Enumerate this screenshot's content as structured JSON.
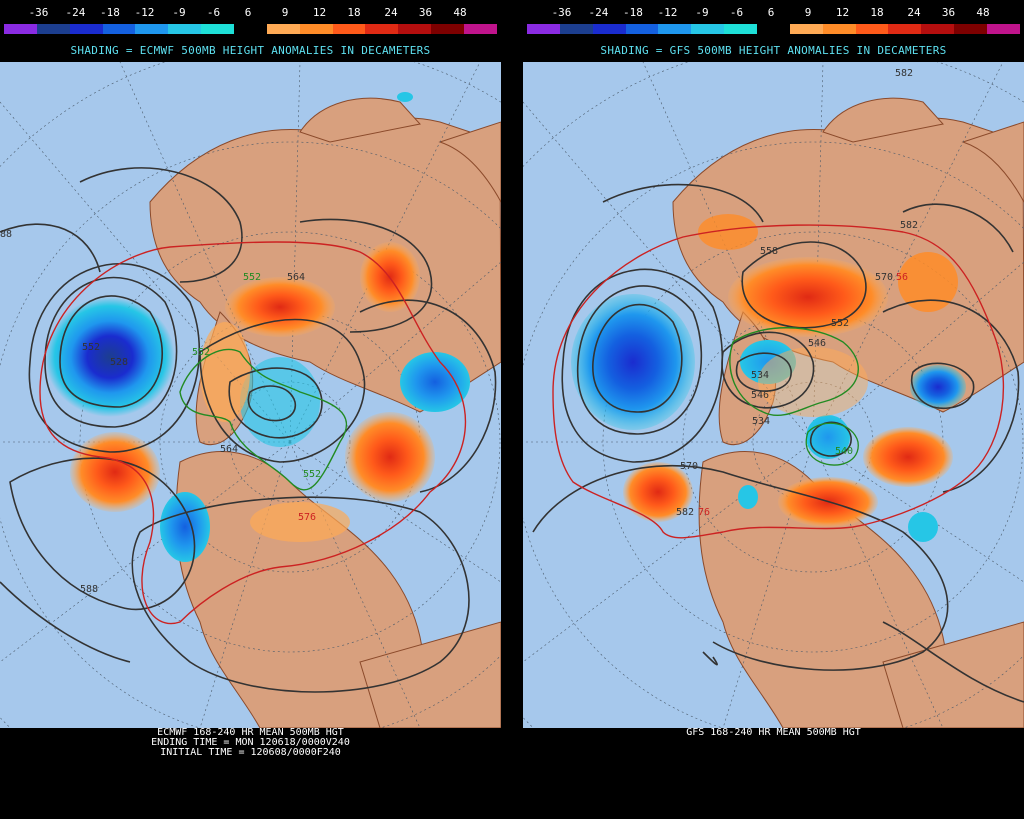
{
  "scale": {
    "labels": [
      "-36",
      "-24",
      "-18",
      "-12",
      "-9",
      "-6",
      "6",
      "9",
      "12",
      "18",
      "24",
      "36",
      "48"
    ],
    "colors": [
      "#8a2be2",
      "#1c3e8f",
      "#1a2ccf",
      "#1460e0",
      "#1f97ee",
      "#26c6e6",
      "#1ee0d8",
      "#000000",
      "#ffaa55",
      "#ff8c28",
      "#ff5a1a",
      "#e02a14",
      "#b40e0e",
      "#7d0000",
      "#c0148c"
    ]
  },
  "left": {
    "shading_title": "SHADING = ECMWF 500MB HEIGHT ANOMALIES IN DECAMETERS",
    "caption": [
      "ECMWF 168-240 HR MEAN 500MB HGT",
      "ENDING TIME = MON 120618/0000V240",
      "INITIAL TIME = 120608/0000F240"
    ],
    "contour_labels": [
      {
        "text": "552",
        "color": "#228b22"
      },
      {
        "text": "564",
        "color": "#333333"
      },
      {
        "text": "552",
        "color": "#333333"
      },
      {
        "text": "528",
        "color": "#333333"
      },
      {
        "text": "552",
        "color": "#228b22"
      },
      {
        "text": "564",
        "color": "#333333"
      },
      {
        "text": "552",
        "color": "#228b22"
      },
      {
        "text": "576",
        "color": "#cc2222"
      },
      {
        "text": "588",
        "color": "#333333"
      },
      {
        "text": "88",
        "color": "#333333"
      }
    ]
  },
  "right": {
    "shading_title": "SHADING = GFS 500MB HEIGHT ANOMALIES IN DECAMETERS",
    "caption": [
      "GFS 168-240 HR MEAN 500MB HGT"
    ],
    "contour_labels": [
      {
        "text": "582",
        "color": "#333333"
      },
      {
        "text": "558",
        "color": "#333333"
      },
      {
        "text": "570",
        "color": "#333333"
      },
      {
        "text": "582",
        "color": "#333333"
      },
      {
        "text": "546",
        "color": "#333333"
      },
      {
        "text": "534",
        "color": "#333333"
      },
      {
        "text": "546",
        "color": "#333333"
      },
      {
        "text": "534",
        "color": "#333333"
      },
      {
        "text": "540",
        "color": "#228b22"
      },
      {
        "text": "570",
        "color": "#333333"
      },
      {
        "text": "582",
        "color": "#333333"
      },
      {
        "text": "76",
        "color": "#cc2222"
      },
      {
        "text": "552",
        "color": "#333333"
      },
      {
        "text": "56",
        "color": "#cc2222"
      }
    ]
  }
}
